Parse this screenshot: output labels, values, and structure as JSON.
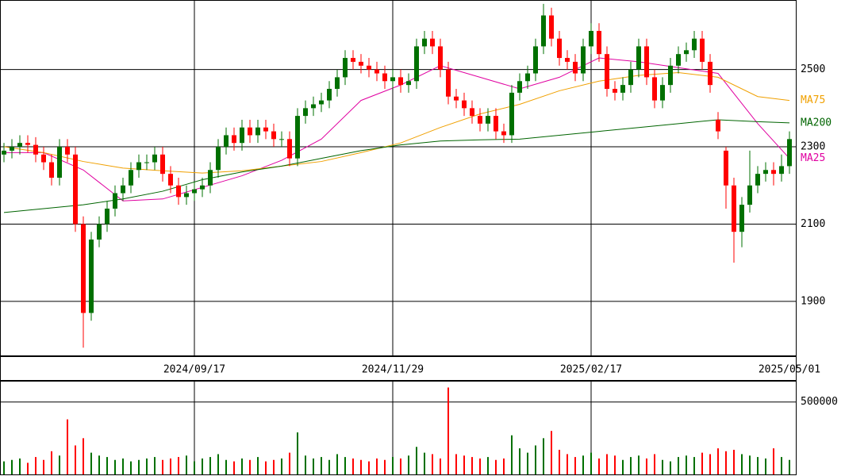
{
  "chart_data": [
    {
      "type": "candlestick",
      "categories": [
        null,
        null,
        null,
        null,
        null,
        null,
        null,
        null,
        null,
        null,
        null,
        null,
        null,
        null,
        null,
        null,
        null,
        null,
        null,
        null,
        null,
        null,
        null,
        null,
        "2024/09/17",
        null,
        null,
        null,
        null,
        null,
        null,
        null,
        null,
        null,
        null,
        null,
        null,
        null,
        null,
        null,
        null,
        null,
        null,
        null,
        null,
        null,
        null,
        null,
        null,
        "2024/11/29",
        null,
        null,
        null,
        null,
        null,
        null,
        null,
        null,
        null,
        null,
        null,
        null,
        null,
        null,
        null,
        null,
        null,
        null,
        null,
        null,
        null,
        null,
        null,
        null,
        "2025/02/17",
        null,
        null,
        null,
        null,
        null,
        null,
        null,
        null,
        null,
        null,
        null,
        null,
        null,
        null,
        null,
        null,
        null,
        null,
        null,
        null,
        null,
        null,
        null,
        null,
        "2025/05/01"
      ],
      "open": [
        2280,
        2290,
        2300,
        2310,
        2305,
        2280,
        2260,
        2220,
        2300,
        2280,
        2100,
        1870,
        2060,
        2100,
        2140,
        2180,
        2200,
        2240,
        2260,
        2260,
        2280,
        2230,
        2200,
        2170,
        2180,
        2190,
        2200,
        2240,
        2300,
        2330,
        2310,
        2350,
        2330,
        2350,
        2340,
        2320,
        2320,
        2270,
        2380,
        2400,
        2410,
        2420,
        2450,
        2480,
        2530,
        2520,
        2510,
        2500,
        2490,
        2470,
        2480,
        2460,
        2470,
        2560,
        2580,
        2560,
        2500,
        2430,
        2420,
        2400,
        2380,
        2360,
        2380,
        2340,
        2330,
        2440,
        2470,
        2490,
        2560,
        2640,
        2580,
        2530,
        2520,
        2490,
        2560,
        2600,
        2540,
        2450,
        2440,
        2460,
        2500,
        2560,
        2480,
        2420,
        2460,
        2510,
        2540,
        2550,
        2580,
        2520,
        2370,
        2290,
        2200,
        2080,
        2150,
        2200,
        2230,
        2240,
        2230,
        2250
      ],
      "high": [
        2310,
        2320,
        2330,
        2330,
        2325,
        2300,
        2280,
        2320,
        2320,
        2300,
        2120,
        2080,
        2120,
        2160,
        2200,
        2220,
        2260,
        2280,
        2280,
        2300,
        2300,
        2250,
        2220,
        2200,
        2210,
        2220,
        2260,
        2320,
        2350,
        2350,
        2370,
        2370,
        2370,
        2370,
        2360,
        2340,
        2340,
        2400,
        2420,
        2430,
        2440,
        2470,
        2500,
        2550,
        2550,
        2540,
        2530,
        2520,
        2510,
        2500,
        2500,
        2490,
        2580,
        2600,
        2600,
        2580,
        2520,
        2450,
        2440,
        2420,
        2400,
        2400,
        2400,
        2360,
        2460,
        2490,
        2510,
        2580,
        2670,
        2660,
        2600,
        2550,
        2540,
        2580,
        2620,
        2620,
        2560,
        2470,
        2480,
        2520,
        2580,
        2580,
        2500,
        2480,
        2530,
        2560,
        2570,
        2600,
        2600,
        2540,
        2390,
        2300,
        2220,
        2170,
        2290,
        2250,
        2260,
        2260,
        2280,
        2340
      ],
      "low": [
        2260,
        2270,
        2280,
        2285,
        2260,
        2240,
        2200,
        2200,
        2260,
        2080,
        1780,
        1850,
        2040,
        2080,
        2120,
        2160,
        2180,
        2220,
        2240,
        2240,
        2210,
        2180,
        2150,
        2150,
        2160,
        2170,
        2180,
        2220,
        2280,
        2290,
        2290,
        2310,
        2310,
        2320,
        2300,
        2300,
        2250,
        2250,
        2360,
        2380,
        2390,
        2400,
        2430,
        2460,
        2500,
        2490,
        2480,
        2470,
        2450,
        2450,
        2440,
        2440,
        2450,
        2540,
        2540,
        2480,
        2410,
        2400,
        2380,
        2360,
        2340,
        2340,
        2320,
        2310,
        2310,
        2420,
        2450,
        2470,
        2540,
        2560,
        2510,
        2500,
        2470,
        2470,
        2540,
        2520,
        2430,
        2420,
        2420,
        2440,
        2480,
        2460,
        2400,
        2400,
        2440,
        2490,
        2520,
        2530,
        2500,
        2440,
        2320,
        2140,
        2000,
        2040,
        2130,
        2180,
        2210,
        2200,
        2210,
        2230
      ],
      "close": [
        2290,
        2300,
        2310,
        2305,
        2280,
        2260,
        2220,
        2300,
        2280,
        2100,
        1870,
        2060,
        2100,
        2140,
        2180,
        2200,
        2240,
        2260,
        2260,
        2280,
        2230,
        2200,
        2170,
        2180,
        2190,
        2200,
        2240,
        2300,
        2330,
        2310,
        2350,
        2330,
        2350,
        2340,
        2320,
        2320,
        2270,
        2380,
        2400,
        2410,
        2420,
        2450,
        2480,
        2530,
        2520,
        2510,
        2500,
        2490,
        2470,
        2480,
        2460,
        2470,
        2560,
        2580,
        2560,
        2500,
        2430,
        2420,
        2400,
        2380,
        2360,
        2380,
        2340,
        2330,
        2440,
        2470,
        2490,
        2560,
        2640,
        2580,
        2530,
        2520,
        2490,
        2560,
        2600,
        2540,
        2450,
        2440,
        2460,
        2500,
        2560,
        2480,
        2420,
        2460,
        2510,
        2540,
        2550,
        2580,
        2520,
        2460,
        2340,
        2200,
        2080,
        2150,
        2200,
        2230,
        2240,
        2230,
        2250,
        2320
      ],
      "up_color": "#007000",
      "down_color": "#ff0000",
      "ylim": [
        1758,
        2680
      ],
      "yticks": [
        1900,
        2100,
        2300,
        2500
      ],
      "grid": true,
      "series": [
        {
          "name": "MA25",
          "color": "#e000a0",
          "x": [
            0,
            5,
            10,
            15,
            20,
            25,
            30,
            35,
            40,
            45,
            50,
            55,
            60,
            65,
            70,
            75,
            80,
            85,
            90,
            95,
            99
          ],
          "values": [
            2285,
            2285,
            2240,
            2160,
            2165,
            2195,
            2225,
            2265,
            2320,
            2420,
            2460,
            2510,
            2480,
            2450,
            2480,
            2530,
            2520,
            2505,
            2490,
            2360,
            2270
          ]
        },
        {
          "name": "MA75",
          "color": "#f0a000",
          "x": [
            0,
            5,
            10,
            15,
            20,
            25,
            30,
            35,
            40,
            45,
            50,
            55,
            60,
            65,
            70,
            75,
            80,
            85,
            90,
            95,
            99
          ],
          "values": [
            2300,
            2285,
            2262,
            2245,
            2238,
            2232,
            2238,
            2250,
            2262,
            2285,
            2310,
            2350,
            2385,
            2410,
            2445,
            2470,
            2485,
            2492,
            2480,
            2430,
            2420
          ]
        },
        {
          "name": "MA200",
          "color": "#006400",
          "x": [
            0,
            5,
            10,
            15,
            20,
            25,
            30,
            35,
            40,
            45,
            50,
            55,
            60,
            65,
            70,
            75,
            80,
            85,
            90,
            95,
            99
          ],
          "values": [
            2130,
            2140,
            2150,
            2165,
            2185,
            2215,
            2235,
            2250,
            2270,
            2290,
            2305,
            2315,
            2318,
            2320,
            2330,
            2340,
            2350,
            2360,
            2370,
            2365,
            2362
          ]
        }
      ]
    },
    {
      "type": "bar",
      "values": [
        90000,
        100000,
        110000,
        80000,
        120000,
        100000,
        160000,
        130000,
        380000,
        200000,
        250000,
        150000,
        130000,
        120000,
        100000,
        110000,
        90000,
        100000,
        110000,
        120000,
        100000,
        110000,
        120000,
        130000,
        90000,
        110000,
        120000,
        140000,
        100000,
        90000,
        110000,
        100000,
        120000,
        90000,
        100000,
        110000,
        150000,
        290000,
        130000,
        110000,
        120000,
        100000,
        140000,
        120000,
        110000,
        100000,
        90000,
        110000,
        100000,
        120000,
        110000,
        130000,
        190000,
        150000,
        140000,
        110000,
        600000,
        140000,
        130000,
        120000,
        110000,
        120000,
        100000,
        110000,
        270000,
        180000,
        150000,
        200000,
        250000,
        300000,
        170000,
        140000,
        120000,
        130000,
        150000,
        110000,
        140000,
        130000,
        100000,
        120000,
        130000,
        110000,
        140000,
        100000,
        90000,
        120000,
        130000,
        120000,
        150000,
        140000,
        180000,
        160000,
        170000,
        140000,
        130000,
        120000,
        110000,
        180000,
        120000,
        100000
      ],
      "ylim": [
        0,
        641000
      ],
      "yticks": [
        500000
      ],
      "grid": true
    }
  ]
}
